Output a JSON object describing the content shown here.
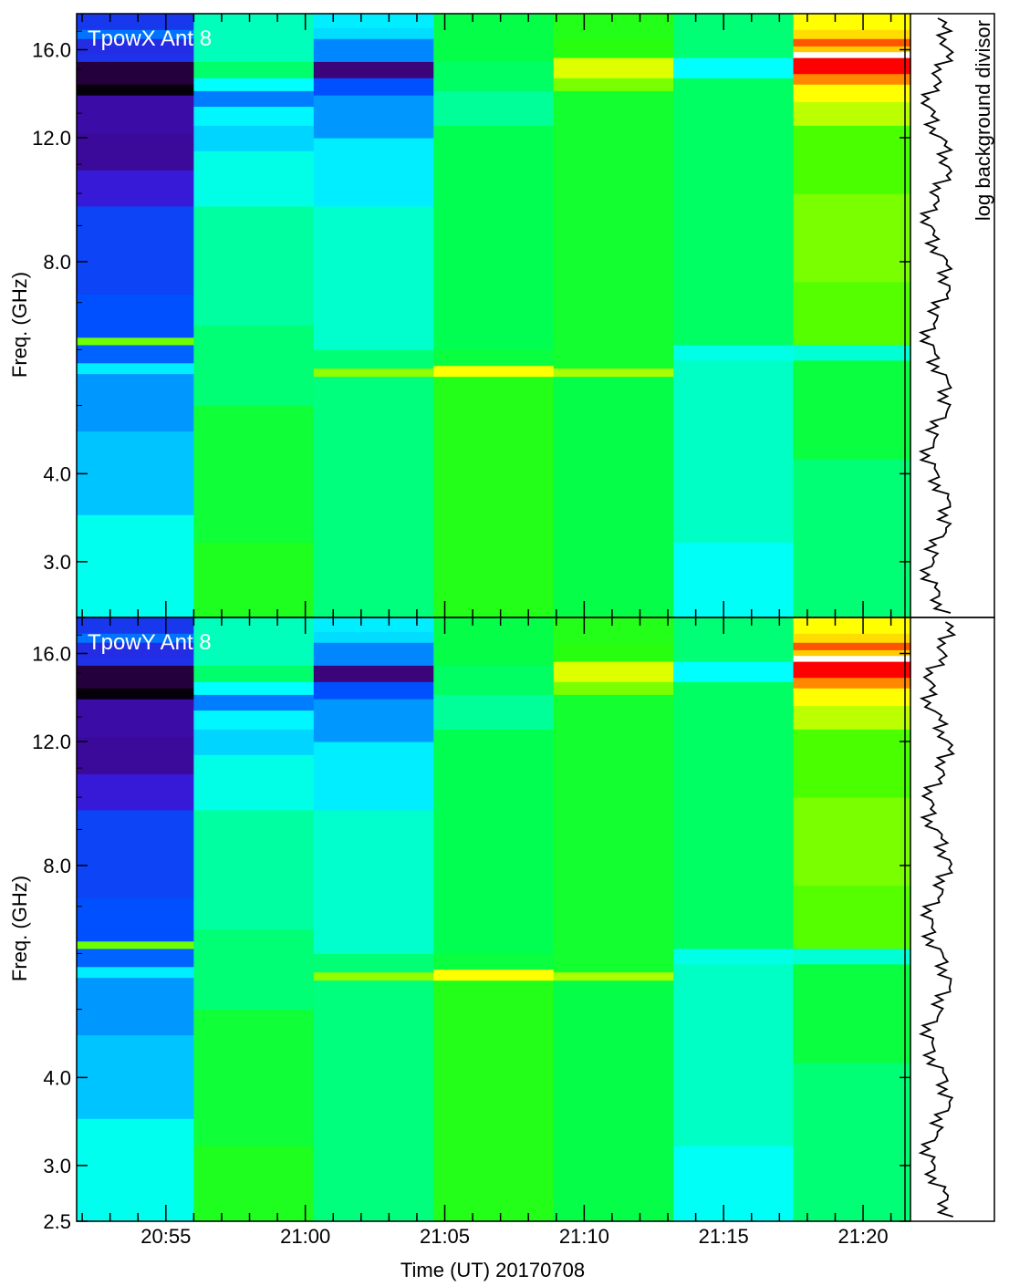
{
  "chart_data": {
    "type": "heatmap",
    "x_label": "Time (UT) 20170708",
    "x_tick_labels": [
      "20:55",
      "21:00",
      "21:05",
      "21:10",
      "21:15",
      "21:20"
    ],
    "x_tick_minutes": [
      55,
      60,
      65,
      70,
      75,
      80
    ],
    "x_range_minutes": [
      51.8,
      81.7
    ],
    "y_label": "Freq. (GHz)",
    "y_scale": "log",
    "y_range": [
      2.5,
      18.0
    ],
    "y_tick_labels": [
      "2.5",
      "3.0",
      "4.0",
      "8.0",
      "12.0",
      "16.0"
    ],
    "y_tick_values": [
      2.5,
      3.0,
      4.0,
      8.0,
      12.0,
      16.0
    ],
    "side_panel_label": "log background divisor",
    "colormap": [
      "#000000",
      "#3c0064",
      "#3c14d2",
      "#0050ff",
      "#00aaff",
      "#00ffff",
      "#00ffaa",
      "#00ff50",
      "#32ff00",
      "#aaff00",
      "#ffff00",
      "#ffaa00",
      "#ff0000",
      "#ffffff"
    ],
    "panels": [
      {
        "title": "TpowX Ant 8",
        "time_blocks": [
          {
            "start": 51.8,
            "end": 56.0,
            "bands": [
              [
                2.5,
                3.5,
                5.2
              ],
              [
                3.5,
                4.6,
                4.3
              ],
              [
                4.6,
                5.55,
                3.8
              ],
              [
                5.55,
                5.75,
                4.8
              ],
              [
                5.75,
                6.1,
                3.2
              ],
              [
                6.1,
                6.25,
                8.5
              ],
              [
                6.25,
                7.2,
                3.0
              ],
              [
                7.2,
                9.6,
                2.8
              ],
              [
                9.6,
                10.8,
                2.1
              ],
              [
                10.8,
                12.2,
                1.5
              ],
              [
                12.2,
                13.8,
                1.6
              ],
              [
                13.8,
                14.3,
                0.1
              ],
              [
                14.3,
                15.4,
                0.6
              ],
              [
                15.4,
                15.8,
                2.5
              ],
              [
                15.8,
                16.6,
                2.4
              ],
              [
                16.6,
                17.1,
                3.4
              ],
              [
                17.1,
                18.0,
                2.6
              ]
            ]
          },
          {
            "start": 56.0,
            "end": 60.3,
            "bands": [
              [
                2.5,
                3.2,
                7.6
              ],
              [
                3.2,
                5.0,
                7.3
              ],
              [
                5.0,
                6.5,
                6.6
              ],
              [
                6.5,
                9.6,
                6.1
              ],
              [
                9.6,
                11.5,
                5.3
              ],
              [
                11.5,
                12.5,
                4.5
              ],
              [
                12.5,
                13.3,
                4.9
              ],
              [
                13.3,
                14.0,
                3.5
              ],
              [
                14.0,
                14.6,
                5.0
              ],
              [
                14.6,
                15.4,
                6.7
              ],
              [
                15.4,
                18.0,
                5.8
              ]
            ]
          },
          {
            "start": 60.3,
            "end": 64.6,
            "bands": [
              [
                2.5,
                5.5,
                6.5
              ],
              [
                5.5,
                5.65,
                8.8
              ],
              [
                5.65,
                6.0,
                6.6
              ],
              [
                6.0,
                9.6,
                5.6
              ],
              [
                9.6,
                12.0,
                4.8
              ],
              [
                12.0,
                13.8,
                3.8
              ],
              [
                13.8,
                14.6,
                3.0
              ],
              [
                14.6,
                15.4,
                1.2
              ],
              [
                15.4,
                16.6,
                3.6
              ],
              [
                16.6,
                17.2,
                4.6
              ],
              [
                17.2,
                18.0,
                4.8
              ]
            ]
          },
          {
            "start": 64.6,
            "end": 68.9,
            "bands": [
              [
                2.5,
                5.5,
                7.7
              ],
              [
                5.5,
                5.7,
                10.0
              ],
              [
                5.7,
                6.0,
                7.2
              ],
              [
                6.0,
                12.5,
                7.0
              ],
              [
                12.5,
                14.0,
                6.2
              ],
              [
                14.0,
                15.4,
                6.8
              ],
              [
                15.4,
                18.0,
                7.1
              ]
            ]
          },
          {
            "start": 68.9,
            "end": 73.2,
            "bands": [
              [
                2.5,
                5.5,
                7.1
              ],
              [
                5.5,
                5.65,
                9.0
              ],
              [
                5.65,
                14.0,
                7.4
              ],
              [
                14.0,
                14.6,
                8.6
              ],
              [
                14.6,
                15.6,
                9.6
              ],
              [
                15.6,
                16.6,
                7.8
              ],
              [
                16.6,
                18.0,
                7.7
              ]
            ]
          },
          {
            "start": 73.2,
            "end": 77.5,
            "bands": [
              [
                2.5,
                3.2,
                5.1
              ],
              [
                3.2,
                5.8,
                5.7
              ],
              [
                5.8,
                6.1,
                5.3
              ],
              [
                6.1,
                14.6,
                6.8
              ],
              [
                14.6,
                15.6,
                5.0
              ],
              [
                15.6,
                18.0,
                6.6
              ]
            ]
          },
          {
            "start": 77.5,
            "end": 81.7,
            "bands": [
              [
                2.5,
                4.2,
                6.6
              ],
              [
                4.2,
                5.8,
                7.2
              ],
              [
                5.8,
                6.1,
                5.5
              ],
              [
                6.1,
                7.5,
                8.3
              ],
              [
                7.5,
                10.0,
                8.6
              ],
              [
                10.0,
                12.5,
                8.2
              ],
              [
                12.5,
                13.5,
                9.2
              ],
              [
                13.5,
                14.3,
                10.0
              ],
              [
                14.3,
                14.8,
                11.2
              ],
              [
                14.8,
                15.6,
                12.0
              ],
              [
                15.6,
                15.9,
                13.0
              ],
              [
                15.9,
                16.2,
                10.6
              ],
              [
                16.2,
                16.6,
                11.5
              ],
              [
                16.6,
                17.1,
                10.4
              ],
              [
                17.1,
                18.0,
                10.0
              ]
            ]
          }
        ]
      },
      {
        "title": "TpowY Ant 8",
        "time_blocks": [
          {
            "start": 51.8,
            "end": 56.0,
            "bands": [
              [
                2.5,
                3.5,
                5.2
              ],
              [
                3.5,
                4.6,
                4.3
              ],
              [
                4.6,
                5.55,
                3.8
              ],
              [
                5.55,
                5.75,
                4.8
              ],
              [
                5.75,
                6.1,
                3.2
              ],
              [
                6.1,
                6.25,
                8.5
              ],
              [
                6.25,
                7.2,
                3.0
              ],
              [
                7.2,
                9.6,
                2.8
              ],
              [
                9.6,
                10.8,
                2.1
              ],
              [
                10.8,
                12.2,
                1.5
              ],
              [
                12.2,
                13.8,
                1.6
              ],
              [
                13.8,
                14.3,
                0.1
              ],
              [
                14.3,
                15.4,
                0.6
              ],
              [
                15.4,
                15.8,
                2.5
              ],
              [
                15.8,
                16.6,
                2.4
              ],
              [
                16.6,
                17.1,
                3.4
              ],
              [
                17.1,
                18.0,
                2.6
              ]
            ]
          },
          {
            "start": 56.0,
            "end": 60.3,
            "bands": [
              [
                2.5,
                3.2,
                7.6
              ],
              [
                3.2,
                5.0,
                7.3
              ],
              [
                5.0,
                6.5,
                6.6
              ],
              [
                6.5,
                9.6,
                6.1
              ],
              [
                9.6,
                11.5,
                5.3
              ],
              [
                11.5,
                12.5,
                4.5
              ],
              [
                12.5,
                13.3,
                4.9
              ],
              [
                13.3,
                14.0,
                3.5
              ],
              [
                14.0,
                14.6,
                5.0
              ],
              [
                14.6,
                15.4,
                6.7
              ],
              [
                15.4,
                18.0,
                5.8
              ]
            ]
          },
          {
            "start": 60.3,
            "end": 64.6,
            "bands": [
              [
                2.5,
                5.5,
                6.5
              ],
              [
                5.5,
                5.65,
                8.8
              ],
              [
                5.65,
                6.0,
                6.6
              ],
              [
                6.0,
                9.6,
                5.6
              ],
              [
                9.6,
                12.0,
                4.8
              ],
              [
                12.0,
                13.8,
                3.8
              ],
              [
                13.8,
                14.6,
                3.0
              ],
              [
                14.6,
                15.4,
                1.2
              ],
              [
                15.4,
                16.6,
                3.6
              ],
              [
                16.6,
                17.2,
                4.6
              ],
              [
                17.2,
                18.0,
                4.8
              ]
            ]
          },
          {
            "start": 64.6,
            "end": 68.9,
            "bands": [
              [
                2.5,
                5.5,
                7.7
              ],
              [
                5.5,
                5.7,
                10.0
              ],
              [
                5.7,
                6.0,
                7.2
              ],
              [
                6.0,
                12.5,
                7.0
              ],
              [
                12.5,
                14.0,
                6.2
              ],
              [
                14.0,
                15.4,
                6.8
              ],
              [
                15.4,
                18.0,
                7.1
              ]
            ]
          },
          {
            "start": 68.9,
            "end": 73.2,
            "bands": [
              [
                2.5,
                5.5,
                7.1
              ],
              [
                5.5,
                5.65,
                9.0
              ],
              [
                5.65,
                14.0,
                7.4
              ],
              [
                14.0,
                14.6,
                8.6
              ],
              [
                14.6,
                15.6,
                9.6
              ],
              [
                15.6,
                16.6,
                7.8
              ],
              [
                16.6,
                18.0,
                7.7
              ]
            ]
          },
          {
            "start": 73.2,
            "end": 77.5,
            "bands": [
              [
                2.5,
                3.2,
                5.1
              ],
              [
                3.2,
                5.8,
                5.7
              ],
              [
                5.8,
                6.1,
                5.3
              ],
              [
                6.1,
                14.6,
                6.8
              ],
              [
                14.6,
                15.6,
                5.0
              ],
              [
                15.6,
                18.0,
                6.6
              ]
            ]
          },
          {
            "start": 77.5,
            "end": 81.7,
            "bands": [
              [
                2.5,
                4.2,
                6.6
              ],
              [
                4.2,
                5.8,
                7.2
              ],
              [
                5.8,
                6.1,
                5.5
              ],
              [
                6.1,
                7.5,
                8.3
              ],
              [
                7.5,
                10.0,
                8.6
              ],
              [
                10.0,
                12.5,
                8.2
              ],
              [
                12.5,
                13.5,
                9.2
              ],
              [
                13.5,
                14.3,
                10.0
              ],
              [
                14.3,
                14.8,
                11.2
              ],
              [
                14.8,
                15.6,
                12.0
              ],
              [
                15.6,
                15.9,
                13.0
              ],
              [
                15.9,
                16.2,
                10.6
              ],
              [
                16.2,
                16.6,
                11.5
              ],
              [
                16.6,
                17.1,
                10.4
              ],
              [
                17.1,
                18.0,
                10.0
              ]
            ]
          }
        ]
      }
    ]
  }
}
